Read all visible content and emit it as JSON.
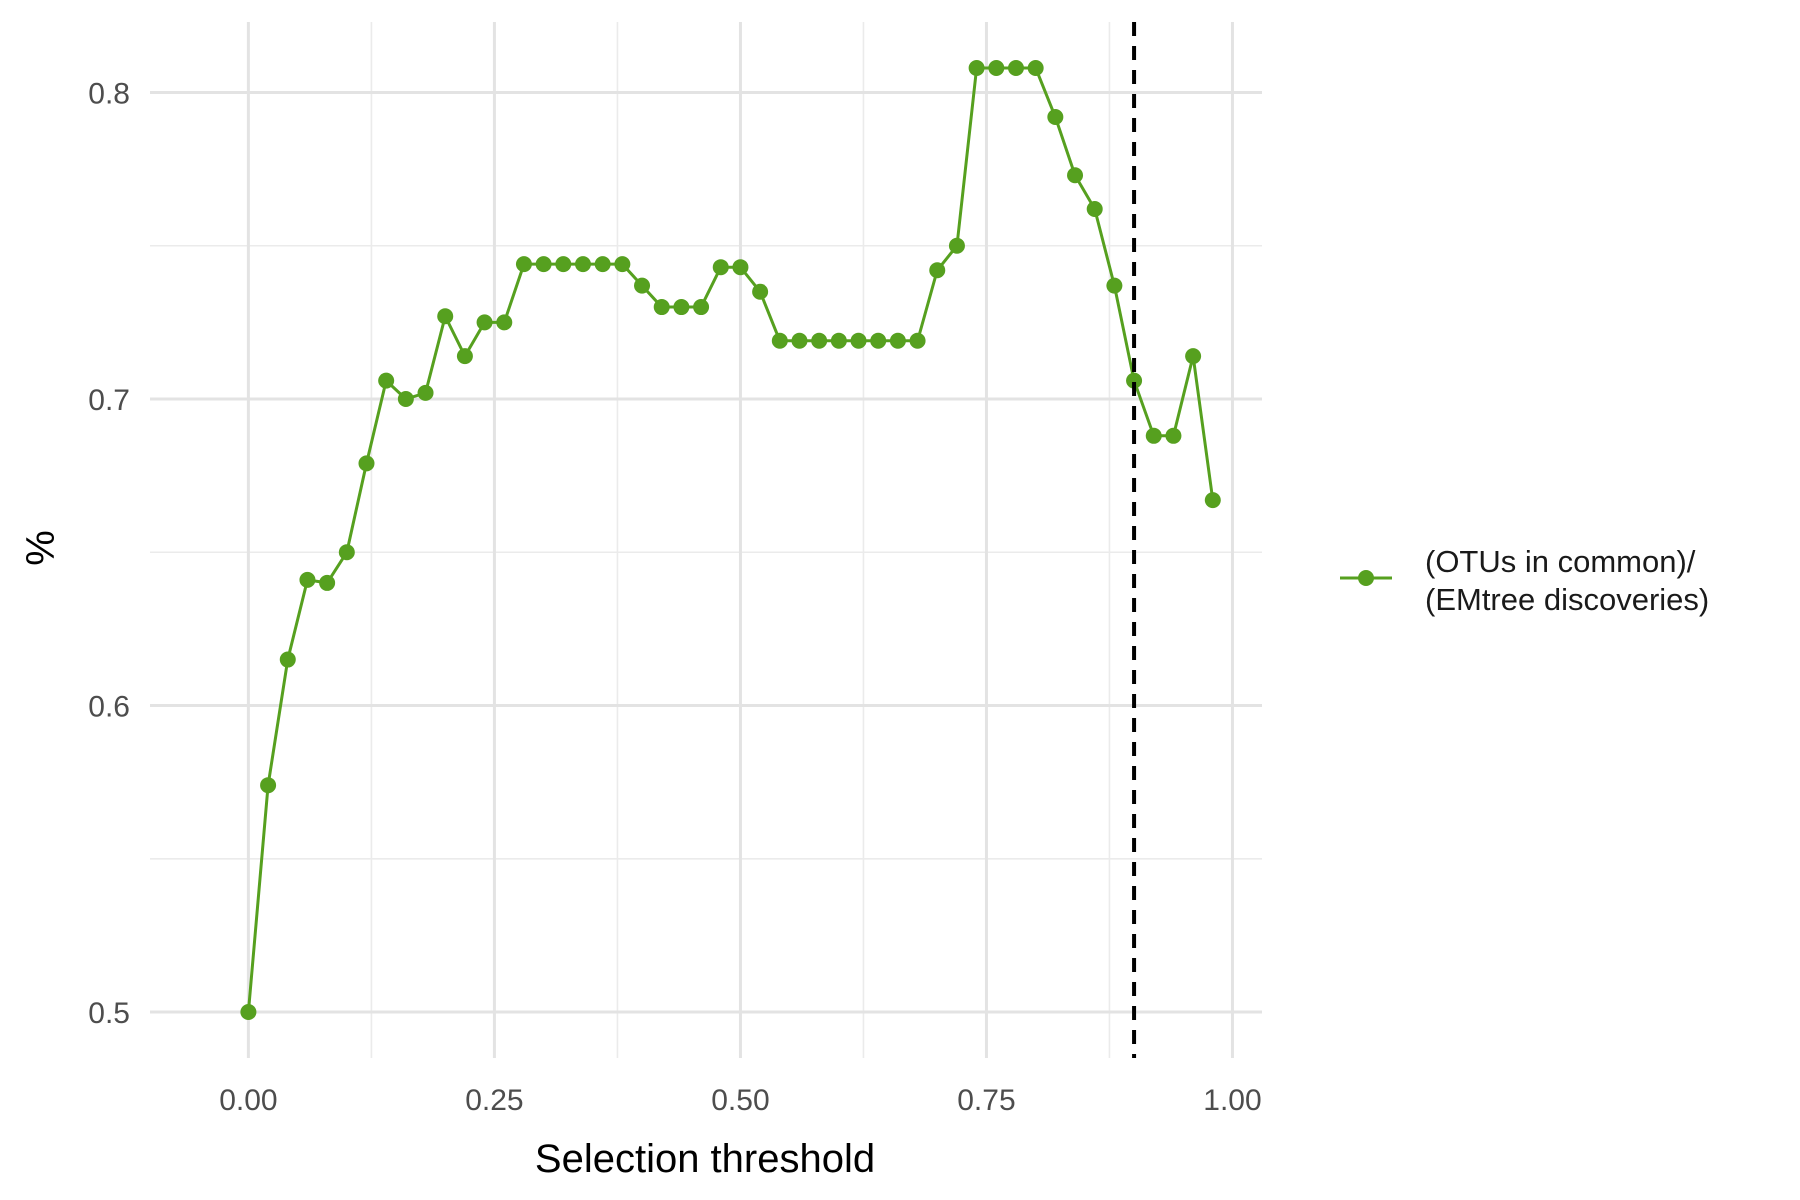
{
  "chart_data": {
    "type": "line",
    "xlabel": "Selection threshold",
    "ylabel": "%",
    "xlim": [
      -0.1,
      1.03
    ],
    "ylim": [
      0.485,
      0.823
    ],
    "x_ticks": [
      0.0,
      0.25,
      0.5,
      0.75,
      1.0
    ],
    "x_tick_labels": [
      "0.00",
      "0.25",
      "0.50",
      "0.75",
      "1.00"
    ],
    "y_ticks": [
      0.5,
      0.6,
      0.7,
      0.8
    ],
    "y_tick_labels": [
      "0.5",
      "0.6",
      "0.7",
      "0.8"
    ],
    "grid": true,
    "legend_position": "right",
    "reference_line": {
      "orientation": "vertical",
      "x": 0.9,
      "style": "dashed",
      "color": "#000000"
    },
    "series": [
      {
        "name": "(OTUs in common)/\n(EMtree discoveries)",
        "legend_lines": [
          "(OTUs in common)/",
          "(EMtree discoveries)"
        ],
        "color": "#56a01f",
        "x": [
          0.0,
          0.02,
          0.04,
          0.06,
          0.08,
          0.1,
          0.12,
          0.14,
          0.16,
          0.18,
          0.2,
          0.22,
          0.24,
          0.26,
          0.28,
          0.3,
          0.32,
          0.34,
          0.36,
          0.38,
          0.4,
          0.42,
          0.44,
          0.46,
          0.48,
          0.5,
          0.52,
          0.54,
          0.56,
          0.58,
          0.6,
          0.62,
          0.64,
          0.66,
          0.68,
          0.7,
          0.72,
          0.74,
          0.76,
          0.78,
          0.8,
          0.82,
          0.84,
          0.86,
          0.88,
          0.9,
          0.92,
          0.94,
          0.96,
          0.98
        ],
        "y": [
          0.5,
          0.574,
          0.615,
          0.641,
          0.64,
          0.65,
          0.679,
          0.706,
          0.7,
          0.702,
          0.727,
          0.714,
          0.725,
          0.725,
          0.744,
          0.744,
          0.744,
          0.744,
          0.744,
          0.744,
          0.737,
          0.73,
          0.73,
          0.73,
          0.743,
          0.743,
          0.735,
          0.719,
          0.719,
          0.719,
          0.719,
          0.719,
          0.719,
          0.719,
          0.719,
          0.742,
          0.75,
          0.808,
          0.808,
          0.808,
          0.808,
          0.792,
          0.773,
          0.762,
          0.737,
          0.706,
          0.688,
          0.688,
          0.714,
          0.667
        ]
      }
    ]
  }
}
